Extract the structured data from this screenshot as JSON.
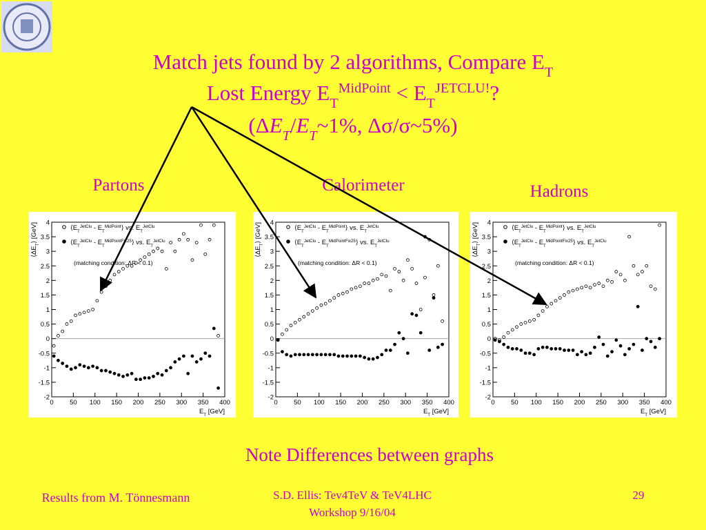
{
  "title": {
    "lines": [
      [
        {
          "text": "Match jets found by 2 algorithms, Compare E"
        },
        {
          "text": "T",
          "style": "sub"
        }
      ],
      [
        {
          "text": "Lost Energy E"
        },
        {
          "text": "T",
          "style": "sub"
        },
        {
          "text": "MidPoint",
          "style": "sup"
        },
        {
          "text": " < E"
        },
        {
          "text": "T",
          "style": "sub"
        },
        {
          "text": "JETCLU!",
          "style": "sup"
        },
        {
          "text": "?"
        }
      ],
      [
        {
          "text": "(Δ"
        },
        {
          "text": "E",
          "style": "italic"
        },
        {
          "text": "T",
          "style": "italic-sub"
        },
        {
          "text": "/"
        },
        {
          "text": "E",
          "style": "italic"
        },
        {
          "text": "T",
          "style": "italic-sub"
        },
        {
          "text": "~1%, Δσ/σ~5%)"
        }
      ]
    ]
  },
  "note": "Note Differences between graphs",
  "footer": {
    "left": "Results from M. Tönnesmann",
    "center": [
      "S.D. Ellis: Tev4TeV & TeV4LHC",
      "Workshop  9/16/04"
    ],
    "page": "29"
  },
  "chart_data": [
    {
      "type": "scatter",
      "title": "Partons",
      "x_label": [
        {
          "text": "E"
        },
        {
          "text": "T",
          "style": "sub"
        },
        {
          "text": " [GeV]"
        }
      ],
      "y_label": [
        {
          "text": "⟨ΔE"
        },
        {
          "text": "T",
          "style": "sub"
        },
        {
          "text": "⟩ [GeV]"
        }
      ],
      "annotation": "(matching condition: ΔR < 0.1)",
      "xlim": [
        0,
        400
      ],
      "xticks": [
        0,
        50,
        100,
        150,
        200,
        250,
        300,
        350,
        400
      ],
      "ylim": [
        -2,
        4
      ],
      "yticks": [
        -2,
        -1.5,
        -1,
        -0.5,
        0,
        0.5,
        1,
        1.5,
        2,
        2.5,
        3,
        3.5,
        4
      ],
      "x": [
        5,
        15,
        25,
        35,
        45,
        55,
        65,
        75,
        85,
        95,
        105,
        115,
        125,
        135,
        145,
        155,
        165,
        175,
        185,
        195,
        205,
        215,
        225,
        235,
        245,
        255,
        265,
        275,
        285,
        295,
        305,
        315,
        325,
        335,
        345,
        355,
        365,
        375,
        385
      ],
      "series": [
        {
          "name": [
            {
              "text": "⟨E"
            },
            {
              "text": "T",
              "style": "sub"
            },
            {
              "text": "JetClu",
              "style": "sup"
            },
            {
              "text": " - E"
            },
            {
              "text": "T",
              "style": "sub"
            },
            {
              "text": "MidPoint",
              "style": "sup"
            },
            {
              "text": "⟩ vs. E"
            },
            {
              "text": "T",
              "style": "sub"
            },
            {
              "text": "JetClu",
              "style": "sup"
            }
          ],
          "marker": "open",
          "color": "#000000",
          "values": [
            -0.25,
            0.1,
            0.25,
            0.5,
            0.6,
            0.8,
            0.85,
            0.9,
            0.95,
            1.0,
            1.3,
            1.6,
            1.8,
            2.0,
            2.2,
            2.3,
            2.4,
            2.5,
            2.5,
            2.6,
            2.7,
            2.8,
            2.9,
            3.0,
            3.1,
            3.0,
            2.4,
            3.3,
            3.0,
            3.4,
            3.6,
            3.4,
            2.7,
            3.3,
            3.9,
            2.9,
            3.4,
            3.9,
            0.1
          ]
        },
        {
          "name": [
            {
              "text": "⟨E"
            },
            {
              "text": "T",
              "style": "sub"
            },
            {
              "text": "JetClu",
              "style": "sup"
            },
            {
              "text": " - E"
            },
            {
              "text": "T",
              "style": "sub"
            },
            {
              "text": "MidPointFix25",
              "style": "sup"
            },
            {
              "text": "⟩ vs. E"
            },
            {
              "text": "T",
              "style": "sub"
            },
            {
              "text": "JetClu",
              "style": "sup"
            }
          ],
          "marker": "filled",
          "color": "#000000",
          "values": [
            -0.6,
            -0.75,
            -0.85,
            -0.95,
            -1.05,
            -1.0,
            -0.9,
            -0.95,
            -1.0,
            -0.95,
            -1.0,
            -1.1,
            -1.1,
            -1.15,
            -1.2,
            -1.25,
            -1.3,
            -1.25,
            -1.2,
            -1.4,
            -1.4,
            -1.35,
            -1.35,
            -1.3,
            -1.2,
            -1.25,
            -1.1,
            -1.0,
            -0.8,
            -0.7,
            -0.6,
            -1.2,
            -0.6,
            -0.8,
            -0.7,
            -0.5,
            -0.6,
            0.35,
            -1.7
          ]
        }
      ]
    },
    {
      "type": "scatter",
      "title": "Calorimeter",
      "x_label": [
        {
          "text": "E"
        },
        {
          "text": "T",
          "style": "sub"
        },
        {
          "text": " [GeV]"
        }
      ],
      "y_label": [
        {
          "text": "⟨ΔE"
        },
        {
          "text": "T",
          "style": "sub"
        },
        {
          "text": "⟩ [GeV]"
        }
      ],
      "annotation": "(matching condition: ΔR < 0.1)",
      "xlim": [
        0,
        400
      ],
      "xticks": [
        0,
        50,
        100,
        150,
        200,
        250,
        300,
        350,
        400
      ],
      "ylim": [
        -2,
        4
      ],
      "yticks": [
        -2,
        -1.5,
        -1,
        -0.5,
        0,
        0.5,
        1,
        1.5,
        2,
        2.5,
        3,
        3.5,
        4
      ],
      "x": [
        5,
        15,
        25,
        35,
        45,
        55,
        65,
        75,
        85,
        95,
        105,
        115,
        125,
        135,
        145,
        155,
        165,
        175,
        185,
        195,
        205,
        215,
        225,
        235,
        245,
        255,
        265,
        275,
        285,
        295,
        305,
        315,
        325,
        335,
        345,
        355,
        365,
        375,
        385
      ],
      "series": [
        {
          "name": [
            {
              "text": "⟨E"
            },
            {
              "text": "T",
              "style": "sub"
            },
            {
              "text": "JetClu",
              "style": "sup"
            },
            {
              "text": " - E"
            },
            {
              "text": "T",
              "style": "sub"
            },
            {
              "text": "MidPoint",
              "style": "sup"
            },
            {
              "text": "⟩ vs. E"
            },
            {
              "text": "T",
              "style": "sub"
            },
            {
              "text": "JetClu",
              "style": "sup"
            }
          ],
          "marker": "open",
          "color": "#000000",
          "values": [
            -0.05,
            0.15,
            0.3,
            0.45,
            0.55,
            0.65,
            0.75,
            0.85,
            0.95,
            1.05,
            1.15,
            1.2,
            1.3,
            1.4,
            1.5,
            1.55,
            1.6,
            1.7,
            1.75,
            1.8,
            1.9,
            1.9,
            2.0,
            2.05,
            2.2,
            2.15,
            1.65,
            2.4,
            2.3,
            2.0,
            2.7,
            2.4,
            1.9,
            1.0,
            2.1,
            3.4,
            1.5,
            2.5,
            0.6
          ]
        },
        {
          "name": [
            {
              "text": "⟨E"
            },
            {
              "text": "T",
              "style": "sub"
            },
            {
              "text": "JetClu",
              "style": "sup"
            },
            {
              "text": " - E"
            },
            {
              "text": "T",
              "style": "sub"
            },
            {
              "text": "MidPointFix25",
              "style": "sup"
            },
            {
              "text": "⟩ vs. E"
            },
            {
              "text": "T",
              "style": "sub"
            },
            {
              "text": "JetClu",
              "style": "sup"
            }
          ],
          "marker": "filled",
          "color": "#000000",
          "values": [
            -0.05,
            -0.45,
            -0.55,
            -0.6,
            -0.55,
            -0.55,
            -0.55,
            -0.55,
            -0.55,
            -0.55,
            -0.55,
            -0.55,
            -0.55,
            -0.55,
            -0.6,
            -0.6,
            -0.6,
            -0.6,
            -0.6,
            -0.6,
            -0.65,
            -0.7,
            -0.7,
            -0.65,
            -0.55,
            -0.4,
            -0.4,
            -0.2,
            0.2,
            0.0,
            -0.5,
            0.85,
            0.8,
            0.2,
            3.5,
            -0.4,
            1.4,
            -0.3,
            -0.2
          ]
        }
      ]
    },
    {
      "type": "scatter",
      "title": "Hadrons",
      "x_label": [
        {
          "text": "E"
        },
        {
          "text": "T",
          "style": "sub"
        },
        {
          "text": " [GeV]"
        }
      ],
      "y_label": [
        {
          "text": "⟨ΔE"
        },
        {
          "text": "T",
          "style": "sub"
        },
        {
          "text": "⟩ [GeV]"
        }
      ],
      "annotation": "(matching condition: ΔR < 0.1)",
      "xlim": [
        0,
        400
      ],
      "xticks": [
        0,
        50,
        100,
        150,
        200,
        250,
        300,
        350,
        400
      ],
      "ylim": [
        -2,
        4
      ],
      "yticks": [
        -2,
        -1.5,
        -1,
        -0.5,
        0,
        0.5,
        1,
        1.5,
        2,
        2.5,
        3,
        3.5,
        4
      ],
      "x": [
        5,
        15,
        25,
        35,
        45,
        55,
        65,
        75,
        85,
        95,
        105,
        115,
        125,
        135,
        145,
        155,
        165,
        175,
        185,
        195,
        205,
        215,
        225,
        235,
        245,
        255,
        265,
        275,
        285,
        295,
        305,
        315,
        325,
        335,
        345,
        355,
        365,
        375,
        385
      ],
      "series": [
        {
          "name": [
            {
              "text": "⟨E"
            },
            {
              "text": "T",
              "style": "sub"
            },
            {
              "text": "JetClu",
              "style": "sup"
            },
            {
              "text": " - E"
            },
            {
              "text": "T",
              "style": "sub"
            },
            {
              "text": "MidPoint",
              "style": "sup"
            },
            {
              "text": "⟩ vs. E"
            },
            {
              "text": "T",
              "style": "sub"
            },
            {
              "text": "JetClu",
              "style": "sup"
            }
          ],
          "marker": "open",
          "color": "#000000",
          "values": [
            0.0,
            -0.05,
            0.05,
            0.2,
            0.3,
            0.4,
            0.5,
            0.55,
            0.6,
            0.65,
            0.8,
            0.95,
            1.1,
            1.2,
            1.3,
            1.4,
            1.5,
            1.6,
            1.65,
            1.7,
            1.75,
            1.8,
            1.75,
            1.85,
            1.9,
            1.8,
            2.0,
            1.95,
            2.3,
            2.2,
            2.0,
            3.5,
            2.5,
            2.2,
            2.3,
            2.5,
            1.8,
            1.7,
            3.9
          ]
        },
        {
          "name": [
            {
              "text": "⟨E"
            },
            {
              "text": "T",
              "style": "sub"
            },
            {
              "text": "JetClu",
              "style": "sup"
            },
            {
              "text": " - E"
            },
            {
              "text": "T",
              "style": "sub"
            },
            {
              "text": "MidPointFix25",
              "style": "sup"
            },
            {
              "text": "⟩ vs. E"
            },
            {
              "text": "T",
              "style": "sub"
            },
            {
              "text": "JetClu",
              "style": "sup"
            }
          ],
          "marker": "filled",
          "color": "#000000",
          "values": [
            -0.05,
            -0.1,
            -0.2,
            -0.3,
            -0.35,
            -0.35,
            -0.4,
            -0.5,
            -0.5,
            -0.55,
            -0.35,
            -0.3,
            -0.3,
            -0.35,
            -0.35,
            -0.35,
            -0.4,
            -0.4,
            -0.4,
            -0.55,
            -0.45,
            -0.55,
            -0.5,
            -0.3,
            0.05,
            -0.2,
            -0.6,
            -0.45,
            -0.05,
            -0.25,
            -0.55,
            -0.35,
            -0.2,
            1.1,
            -0.4,
            0.0,
            -0.1,
            -0.3,
            0.0
          ]
        }
      ]
    }
  ]
}
